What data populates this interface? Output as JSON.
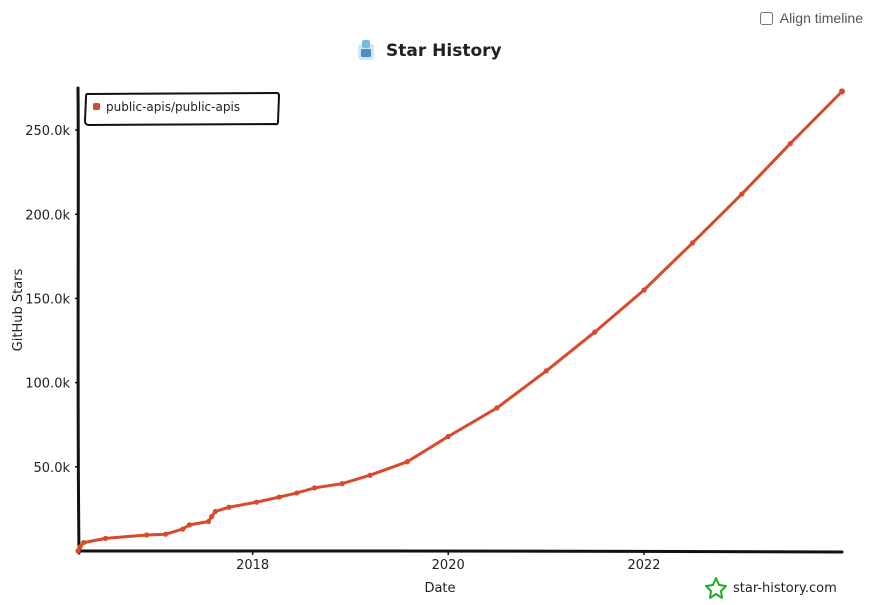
{
  "controls": {
    "align_timeline_label": "Align timeline",
    "align_timeline_checked": false
  },
  "branding": {
    "watermark": "star-history.com",
    "accent_color": "#d84a2b",
    "watermark_color": "#22aa22"
  },
  "chart_data": {
    "type": "line",
    "title": "Star History",
    "xlabel": "Date",
    "ylabel": "GitHub Stars",
    "x_ticks": [
      "2018",
      "2020",
      "2022"
    ],
    "y_ticks": [
      "50.0k",
      "100.0k",
      "150.0k",
      "200.0k",
      "250.0k"
    ],
    "ylim": [
      0,
      275000
    ],
    "legend": {
      "position": "top-left"
    },
    "grid": false,
    "series": [
      {
        "name": "public-apis/public-apis",
        "color": "#d84a2b",
        "points": [
          [
            "2016-03-20",
            0
          ],
          [
            "2016-03-28",
            2500
          ],
          [
            "2016-04-10",
            5000
          ],
          [
            "2016-07-01",
            7500
          ],
          [
            "2016-12-01",
            9500
          ],
          [
            "2017-02-10",
            10000
          ],
          [
            "2017-04-15",
            13000
          ],
          [
            "2017-05-10",
            15500
          ],
          [
            "2017-07-20",
            17500
          ],
          [
            "2017-08-01",
            20500
          ],
          [
            "2017-08-15",
            23500
          ],
          [
            "2017-10-05",
            26000
          ],
          [
            "2018-01-15",
            29000
          ],
          [
            "2018-04-10",
            32000
          ],
          [
            "2018-06-15",
            34500
          ],
          [
            "2018-08-20",
            37500
          ],
          [
            "2018-12-01",
            40000
          ],
          [
            "2019-03-15",
            45000
          ],
          [
            "2019-08-01",
            53000
          ],
          [
            "2020-01-01",
            68000
          ],
          [
            "2020-07-01",
            85000
          ],
          [
            "2021-01-01",
            107000
          ],
          [
            "2021-07-01",
            130000
          ],
          [
            "2022-01-01",
            155000
          ],
          [
            "2022-07-01",
            183000
          ],
          [
            "2023-01-01",
            212000
          ],
          [
            "2023-07-01",
            242000
          ],
          [
            "2024-01-10",
            273000
          ]
        ]
      }
    ]
  }
}
